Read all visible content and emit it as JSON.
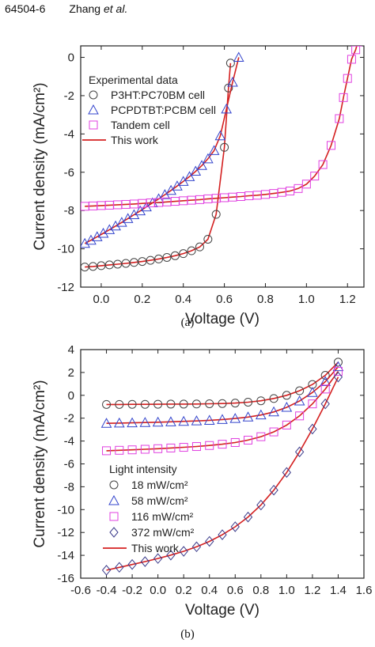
{
  "header": {
    "page_id": "64504-6",
    "author": "Zhang ",
    "etal": "et al."
  },
  "chart_data": [
    {
      "type": "line",
      "caption": "(a)",
      "xlabel": "Voltage (V)",
      "ylabel": "Current density (mA/cm²)",
      "xlim": [
        -0.1,
        1.28
      ],
      "ylim": [
        -12,
        0.6
      ],
      "xticks": [
        "0.0",
        "0.2",
        "0.4",
        "0.6",
        "0.8",
        "1.0",
        "1.2"
      ],
      "xtick_values": [
        0.0,
        0.2,
        0.4,
        0.6,
        0.8,
        1.0,
        1.2
      ],
      "yticks": [
        "0",
        "-2",
        "-4",
        "-6",
        "-8",
        "-10",
        "-12"
      ],
      "ytick_values": [
        0,
        -2,
        -4,
        -6,
        -8,
        -10,
        -12
      ],
      "legend_title": "Experimental data",
      "legend_placement": "top-left",
      "fit_color": "#d42020",
      "series": [
        {
          "name": "P3HT:PC70BM  cell",
          "marker": "circle",
          "color": "#444444",
          "x": [
            -0.08,
            -0.04,
            0.0,
            0.04,
            0.08,
            0.12,
            0.16,
            0.2,
            0.24,
            0.28,
            0.32,
            0.36,
            0.4,
            0.44,
            0.48,
            0.52,
            0.56,
            0.6,
            0.62,
            0.63
          ],
          "y": [
            -10.95,
            -10.92,
            -10.88,
            -10.84,
            -10.8,
            -10.76,
            -10.71,
            -10.66,
            -10.6,
            -10.53,
            -10.45,
            -10.36,
            -10.25,
            -10.1,
            -9.9,
            -9.5,
            -8.2,
            -4.7,
            -1.6,
            -0.3
          ]
        },
        {
          "name": "PCPDTBT:PCBM cell",
          "marker": "triangle",
          "color": "#3344cc",
          "x": [
            -0.08,
            -0.05,
            -0.02,
            0.01,
            0.04,
            0.07,
            0.1,
            0.13,
            0.16,
            0.19,
            0.22,
            0.25,
            0.28,
            0.31,
            0.34,
            0.37,
            0.4,
            0.43,
            0.46,
            0.49,
            0.52,
            0.55,
            0.58,
            0.61,
            0.64,
            0.67
          ],
          "y": [
            -9.72,
            -9.55,
            -9.37,
            -9.19,
            -9.0,
            -8.81,
            -8.62,
            -8.42,
            -8.22,
            -8.02,
            -7.81,
            -7.6,
            -7.39,
            -7.17,
            -6.95,
            -6.72,
            -6.48,
            -6.23,
            -5.95,
            -5.65,
            -5.3,
            -4.87,
            -4.1,
            -2.7,
            -1.3,
            0.0
          ]
        },
        {
          "name": "Tandem cell",
          "marker": "square",
          "color": "#e040e0",
          "x": [
            -0.08,
            -0.04,
            0.0,
            0.04,
            0.08,
            0.12,
            0.16,
            0.2,
            0.24,
            0.28,
            0.32,
            0.36,
            0.4,
            0.44,
            0.48,
            0.52,
            0.56,
            0.6,
            0.64,
            0.68,
            0.72,
            0.76,
            0.8,
            0.84,
            0.88,
            0.92,
            0.96,
            1.0,
            1.04,
            1.08,
            1.12,
            1.16,
            1.18,
            1.2,
            1.22,
            1.24,
            1.25
          ],
          "y": [
            -7.78,
            -7.76,
            -7.74,
            -7.72,
            -7.7,
            -7.68,
            -7.66,
            -7.63,
            -7.6,
            -7.58,
            -7.55,
            -7.52,
            -7.49,
            -7.46,
            -7.43,
            -7.39,
            -7.36,
            -7.33,
            -7.3,
            -7.27,
            -7.23,
            -7.2,
            -7.16,
            -7.11,
            -7.05,
            -6.98,
            -6.85,
            -6.62,
            -6.2,
            -5.6,
            -4.6,
            -3.2,
            -2.1,
            -1.1,
            -0.1,
            0.4,
            0.8
          ]
        },
        {
          "name": "This work",
          "marker": "line",
          "color": "#d42020"
        }
      ]
    },
    {
      "type": "line",
      "caption": "(b)",
      "xlabel": "Voltage (V)",
      "ylabel": "Current density (mA/cm²)",
      "xlim": [
        -0.6,
        1.6
      ],
      "ylim": [
        -16,
        4
      ],
      "xticks": [
        "-0.6",
        "-0.4",
        "-0.2",
        "0.0",
        "0.2",
        "0.4",
        "0.6",
        "0.8",
        "1.0",
        "1.2",
        "1.4",
        "1.6"
      ],
      "xtick_values": [
        -0.6,
        -0.4,
        -0.2,
        0.0,
        0.2,
        0.4,
        0.6,
        0.8,
        1.0,
        1.2,
        1.4,
        1.6
      ],
      "yticks": [
        "4",
        "2",
        "0",
        "-2",
        "-4",
        "-6",
        "-8",
        "-10",
        "-12",
        "-14",
        "-16"
      ],
      "ytick_values": [
        4,
        2,
        0,
        -2,
        -4,
        -6,
        -8,
        -10,
        -12,
        -14,
        -16
      ],
      "legend_title": "Light intensity",
      "legend_placement": "bottom-left",
      "fit_color": "#d42020",
      "series": [
        {
          "name": "18 mW/cm²",
          "marker": "circle",
          "color": "#444444",
          "x": [
            -0.4,
            -0.3,
            -0.2,
            -0.1,
            0.0,
            0.1,
            0.2,
            0.3,
            0.4,
            0.5,
            0.6,
            0.7,
            0.8,
            0.9,
            1.0,
            1.1,
            1.2,
            1.3,
            1.4
          ],
          "y": [
            -0.8,
            -0.8,
            -0.79,
            -0.79,
            -0.78,
            -0.77,
            -0.77,
            -0.76,
            -0.74,
            -0.72,
            -0.68,
            -0.6,
            -0.48,
            -0.28,
            0.0,
            0.4,
            0.95,
            1.75,
            2.9
          ]
        },
        {
          "name": "58 mW/cm²",
          "marker": "triangle",
          "color": "#3344cc",
          "x": [
            -0.4,
            -0.3,
            -0.2,
            -0.1,
            0.0,
            0.1,
            0.2,
            0.3,
            0.4,
            0.5,
            0.6,
            0.7,
            0.8,
            0.9,
            1.0,
            1.1,
            1.2,
            1.3,
            1.4
          ],
          "y": [
            -2.45,
            -2.43,
            -2.41,
            -2.38,
            -2.35,
            -2.32,
            -2.28,
            -2.24,
            -2.19,
            -2.12,
            -2.03,
            -1.9,
            -1.72,
            -1.45,
            -1.05,
            -0.5,
            0.25,
            1.2,
            2.5
          ]
        },
        {
          "name": "116 mW/cm²",
          "marker": "square",
          "color": "#e040e0",
          "x": [
            -0.4,
            -0.3,
            -0.2,
            -0.1,
            0.0,
            0.1,
            0.2,
            0.3,
            0.4,
            0.5,
            0.6,
            0.7,
            0.8,
            0.9,
            1.0,
            1.1,
            1.2,
            1.3,
            1.4
          ],
          "y": [
            -4.85,
            -4.81,
            -4.77,
            -4.72,
            -4.67,
            -4.61,
            -4.55,
            -4.48,
            -4.39,
            -4.28,
            -4.13,
            -3.92,
            -3.62,
            -3.2,
            -2.6,
            -1.8,
            -0.75,
            0.55,
            2.1
          ]
        },
        {
          "name": "372 mW/cm²",
          "marker": "diamond",
          "color": "#3a3a8a",
          "x": [
            -0.4,
            -0.3,
            -0.2,
            -0.1,
            0.0,
            0.1,
            0.2,
            0.3,
            0.4,
            0.5,
            0.6,
            0.7,
            0.8,
            0.9,
            1.0,
            1.1,
            1.2,
            1.3,
            1.4
          ],
          "y": [
            -15.3,
            -15.05,
            -14.8,
            -14.55,
            -14.28,
            -13.98,
            -13.65,
            -13.25,
            -12.78,
            -12.2,
            -11.5,
            -10.65,
            -9.6,
            -8.3,
            -6.75,
            -4.95,
            -2.95,
            -0.75,
            1.6
          ]
        },
        {
          "name": "This work",
          "marker": "line",
          "color": "#d42020"
        }
      ]
    }
  ]
}
